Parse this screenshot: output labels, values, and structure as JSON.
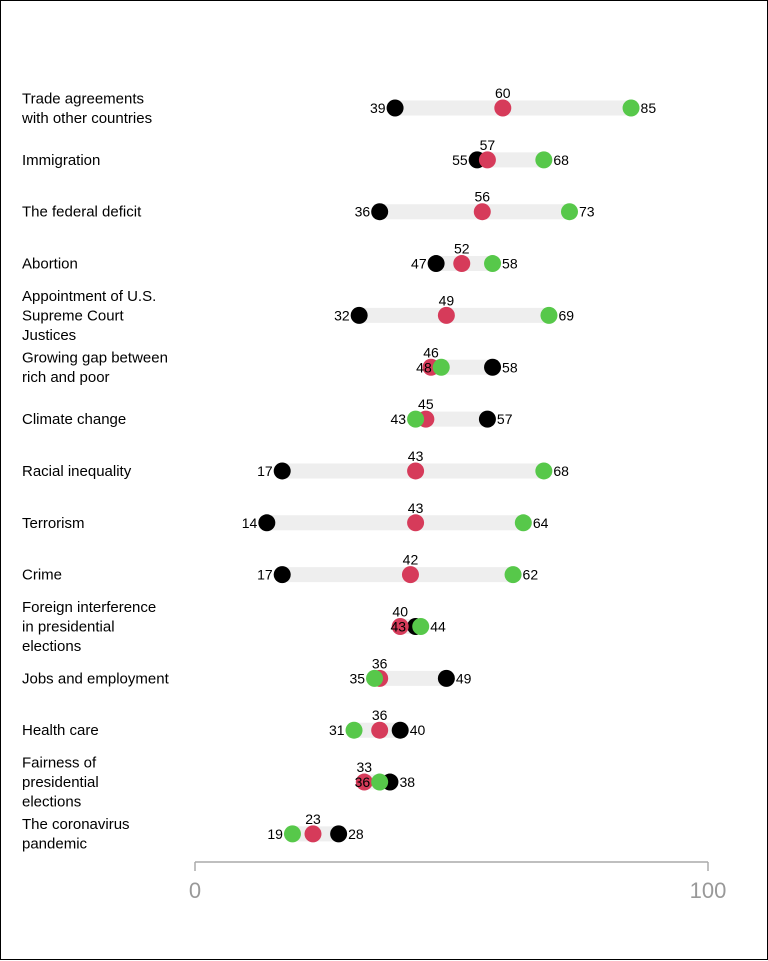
{
  "chart_data": {
    "type": "dot-range",
    "xlim": [
      0,
      100
    ],
    "xticks": [
      0,
      100
    ],
    "grid": false,
    "legend": "none",
    "colors": {
      "black": "#000000",
      "red": "#d63b5a",
      "green": "#57c84a",
      "bar": "#eeeeee",
      "axis": "#aaaaaa",
      "tick_text": "#999999"
    },
    "rows": [
      {
        "label": [
          "Trade agreements",
          "with other countries"
        ],
        "black": 39,
        "red": 60,
        "green": 85
      },
      {
        "label": [
          "Immigration"
        ],
        "black": 55,
        "red": 57,
        "green": 68
      },
      {
        "label": [
          "The federal deficit"
        ],
        "black": 36,
        "red": 56,
        "green": 73
      },
      {
        "label": [
          "Abortion"
        ],
        "black": 47,
        "red": 52,
        "green": 58
      },
      {
        "label": [
          "Appointment of U.S.",
          "Supreme Court",
          "Justices"
        ],
        "black": 32,
        "red": 49,
        "green": 69
      },
      {
        "label": [
          "Growing gap between",
          "rich and poor"
        ],
        "black": 58,
        "red": 46,
        "green": 48
      },
      {
        "label": [
          "Climate change"
        ],
        "black": 57,
        "red": 45,
        "green": 43
      },
      {
        "label": [
          "Racial inequality"
        ],
        "black": 17,
        "red": 43,
        "green": 68
      },
      {
        "label": [
          "Terrorism"
        ],
        "black": 14,
        "red": 43,
        "green": 64
      },
      {
        "label": [
          "Crime"
        ],
        "black": 17,
        "red": 42,
        "green": 62
      },
      {
        "label": [
          "Foreign interference",
          "in presidential",
          "elections"
        ],
        "black": 43,
        "red": 40,
        "green": 44
      },
      {
        "label": [
          "Jobs and employment"
        ],
        "black": 49,
        "red": 36,
        "green": 35
      },
      {
        "label": [
          "Health care"
        ],
        "black": 40,
        "red": 36,
        "green": 31
      },
      {
        "label": [
          "Fairness of",
          "presidential",
          "elections"
        ],
        "black": 38,
        "red": 33,
        "green": 36
      },
      {
        "label": [
          "The coronavirus",
          "pandemic"
        ],
        "black": 28,
        "red": 23,
        "green": 19
      }
    ]
  }
}
